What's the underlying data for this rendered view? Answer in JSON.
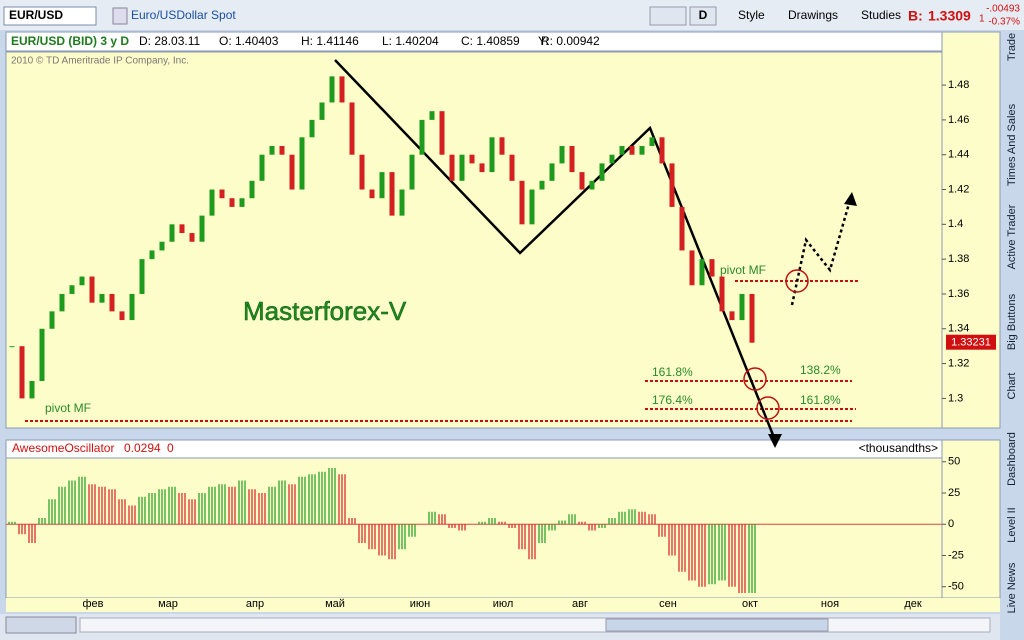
{
  "toolbar": {
    "symbol": "EUR/USD",
    "description": "Euro/USDollar Spot",
    "period": "D",
    "style": "Style",
    "drawings": "Drawings",
    "studies": "Studies",
    "bid_label": "B:",
    "bid": "1.3309",
    "bid_fraction": "1",
    "change": "-.00493",
    "change_percent": "-0.37%"
  },
  "header": {
    "study": "EUR/USD (BID) 3 y D",
    "date": "D: 28.03.11",
    "open": "O: 1.40403",
    "high": "H: 1.41146",
    "low": "L: 1.40204",
    "close": "C: 1.40859",
    "range": "R: 0.00942",
    "y": "Y:"
  },
  "copyright": "2010 © TD Ameritrade IP Company, Inc.",
  "months": [
    "фев",
    "мар",
    "апр",
    "май",
    "июн",
    "июл",
    "авг",
    "сен",
    "окт",
    "ноя",
    "дек"
  ],
  "side_tabs": [
    "Trade",
    "Times And Sales",
    "Active Trader",
    "Big Buttons",
    "Chart",
    "Dashboard",
    "Level II",
    "Live News"
  ],
  "chart_data": [
    {
      "type": "candlestick",
      "last_price": "1.33231",
      "annotations": {
        "title": "Masterforex-V",
        "pivot_low": "pivot MF",
        "pivot_high": "pivot MF",
        "fib_a1": "161.8%",
        "fib_a2": "138.2%",
        "fib_b1": "176.4%",
        "fib_b2": "161.8%"
      },
      "up_color": "#1e9a1e",
      "down_color": "#d42020",
      "values": [
        1.33,
        1.3,
        1.31,
        1.34,
        1.35,
        1.36,
        1.365,
        1.37,
        1.355,
        1.36,
        1.35,
        1.345,
        1.36,
        1.38,
        1.385,
        1.39,
        1.4,
        1.395,
        1.39,
        1.405,
        1.42,
        1.415,
        1.41,
        1.415,
        1.425,
        1.44,
        1.445,
        1.44,
        1.42,
        1.45,
        1.46,
        1.47,
        1.485,
        1.47,
        1.44,
        1.42,
        1.415,
        1.43,
        1.405,
        1.42,
        1.44,
        1.46,
        1.465,
        1.44,
        1.425,
        1.44,
        1.435,
        1.43,
        1.45,
        1.44,
        1.425,
        1.4,
        1.42,
        1.425,
        1.435,
        1.445,
        1.43,
        1.42,
        1.425,
        1.435,
        1.44,
        1.445,
        1.44,
        1.445,
        1.45,
        1.435,
        1.41,
        1.385,
        1.365,
        1.38,
        1.37,
        1.35,
        1.345,
        1.36,
        1.332
      ],
      "ylim": [
        1.283,
        1.499
      ],
      "yticks": [
        1.48,
        1.46,
        1.44,
        1.42,
        1.4,
        1.38,
        1.36,
        1.34,
        1.32,
        1.3
      ]
    },
    {
      "type": "histogram",
      "name": "AwesomeOscillator",
      "reading": "0.0294",
      "reading2": "0",
      "units": "<thousandths>",
      "up_color": "#1e9a1e",
      "down_color": "#d42020",
      "values": [
        2,
        -8,
        -15,
        5,
        20,
        30,
        35,
        38,
        32,
        30,
        28,
        20,
        15,
        22,
        25,
        28,
        30,
        25,
        20,
        25,
        30,
        32,
        30,
        35,
        28,
        25,
        30,
        35,
        32,
        38,
        40,
        42,
        45,
        40,
        5,
        -15,
        -20,
        -25,
        -28,
        -20,
        -10,
        0,
        10,
        8,
        -3,
        -5,
        0,
        2,
        5,
        2,
        -3,
        -20,
        -28,
        -15,
        -5,
        3,
        8,
        2,
        -5,
        -3,
        5,
        10,
        12,
        10,
        8,
        -10,
        -25,
        -38,
        -45,
        -50,
        -48,
        -45,
        -50,
        -55,
        -55
      ],
      "ylim": [
        -59,
        53
      ],
      "yticks": [
        50,
        25,
        0,
        -25,
        -50
      ]
    }
  ]
}
